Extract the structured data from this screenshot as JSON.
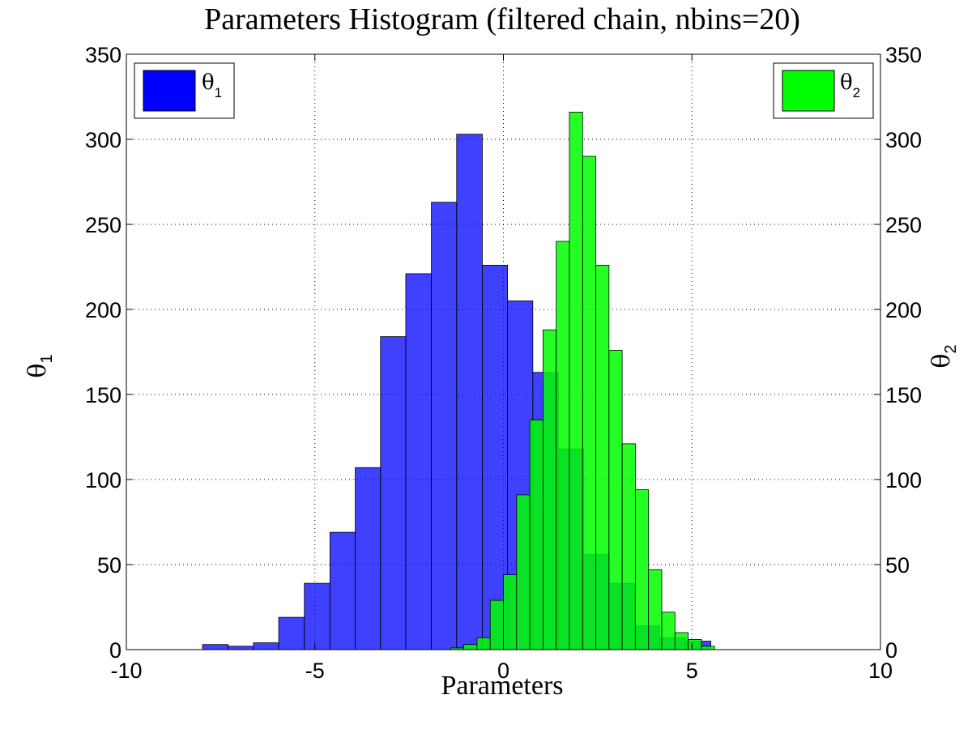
{
  "chart_data": {
    "type": "bar",
    "title": "Parameters Histogram (filtered chain, nbins=20)",
    "xlabel": "Parameters",
    "xlim": [
      -10,
      10
    ],
    "xticks": [
      -10,
      -5,
      0,
      5,
      10
    ],
    "grid": true,
    "left_axis": {
      "label": "θ",
      "label_sub": "1",
      "ylim": [
        0,
        350
      ],
      "ticks": [
        0,
        50,
        100,
        150,
        200,
        250,
        300,
        350
      ]
    },
    "right_axis": {
      "label": "θ",
      "label_sub": "2",
      "ylim": [
        0,
        350
      ],
      "ticks": [
        0,
        50,
        100,
        150,
        200,
        250,
        300,
        350
      ]
    },
    "series": [
      {
        "name": "θ",
        "name_sub": "1",
        "axis": "left",
        "color": "#0000ff",
        "opacity": 0.75,
        "legend": "top-left",
        "bin_edges": [
          -7.98,
          -7.3,
          -6.63,
          -5.96,
          -5.28,
          -4.6,
          -3.93,
          -3.26,
          -2.59,
          -1.91,
          -1.24,
          -0.56,
          0.11,
          0.78,
          1.46,
          2.13,
          2.81,
          3.48,
          4.15,
          4.83,
          5.5
        ],
        "values": [
          3,
          2,
          4,
          19,
          39,
          69,
          107,
          184,
          221,
          263,
          303,
          226,
          205,
          163,
          118,
          56,
          39,
          14,
          7,
          5
        ]
      },
      {
        "name": "θ",
        "name_sub": "2",
        "axis": "right",
        "color": "#00ff00",
        "opacity": 0.85,
        "legend": "top-right",
        "bin_edges": [
          -1.4,
          -1.05,
          -0.7,
          -0.35,
          0.0,
          0.35,
          0.7,
          1.05,
          1.4,
          1.75,
          2.1,
          2.45,
          2.8,
          3.15,
          3.5,
          3.85,
          4.2,
          4.55,
          4.9,
          5.25,
          5.6
        ],
        "values": [
          1,
          3,
          7,
          29,
          44,
          91,
          135,
          188,
          240,
          316,
          290,
          226,
          176,
          121,
          94,
          47,
          22,
          10,
          6,
          2
        ]
      }
    ]
  }
}
